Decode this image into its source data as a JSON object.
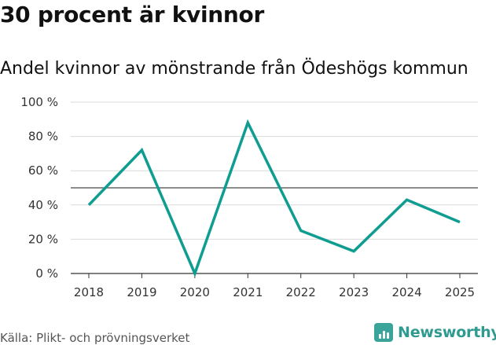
{
  "header": {
    "title": "30 procent är kvinnor",
    "subtitle": "Andel kvinnor av mönstrande från Ödeshögs kommun"
  },
  "footer": {
    "source": "Källa: Plikt- och prövningsverket",
    "brand": "Newsworthy"
  },
  "colors": {
    "line": "#0f9d91",
    "reference_line": "#666666",
    "grid": "#d9d9d9",
    "brand": "#2e9a90"
  },
  "chart_data": {
    "type": "line",
    "title": "30 procent är kvinnor",
    "subtitle": "Andel kvinnor av mönstrande från Ödeshögs kommun",
    "xlabel": "",
    "ylabel": "",
    "categories": [
      "2018",
      "2019",
      "2020",
      "2021",
      "2022",
      "2023",
      "2024",
      "2025"
    ],
    "series": [
      {
        "name": "Andel kvinnor",
        "values": [
          40,
          72,
          0,
          88,
          25,
          13,
          43,
          30
        ]
      }
    ],
    "ylim": [
      0,
      100
    ],
    "yticks": [
      0,
      20,
      40,
      60,
      80,
      100
    ],
    "ytick_labels": [
      "0 %",
      "20 %",
      "40 %",
      "60 %",
      "80 %",
      "100 %"
    ],
    "reference_line": 50,
    "grid": true,
    "legend": "none"
  }
}
